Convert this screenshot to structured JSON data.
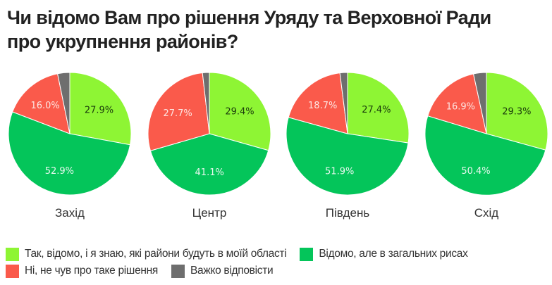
{
  "title": {
    "line1": "Чи відомо Вам про рішення Уряду та Верховної Ради",
    "line2": "про укрупнення районів?"
  },
  "colors": {
    "yes_know": "#8ef534",
    "general": "#04c55a",
    "no": "#fa5a4b",
    "hard": "#6e6e6e"
  },
  "chart_data": {
    "type": "pie",
    "title": "Чи відомо Вам про рішення Уряду та Верховної Ради про укрупнення районів?",
    "legend_position": "bottom",
    "categories": [
      "Так, відомо, і я знаю, які райони будуть в моїй області",
      "Відомо, але в загальних рисах",
      "Ні, не чув про таке рішення",
      "Важко відповісти"
    ],
    "series": [
      {
        "name": "Захід",
        "values": [
          27.9,
          52.9,
          16.0,
          3.2
        ]
      },
      {
        "name": "Центр",
        "values": [
          29.4,
          41.1,
          27.7,
          1.8
        ]
      },
      {
        "name": "Південь",
        "values": [
          27.4,
          51.9,
          18.7,
          2.0
        ]
      },
      {
        "name": "Схід",
        "values": [
          29.3,
          50.4,
          16.9,
          3.4
        ]
      }
    ],
    "data_labels": [
      [
        "27.9%",
        "52.9%",
        "16.0%",
        ""
      ],
      [
        "29.4%",
        "41.1%",
        "27.7%",
        ""
      ],
      [
        "27.4%",
        "51.9%",
        "18.7%",
        ""
      ],
      [
        "29.3%",
        "50.4%",
        "16.9%",
        ""
      ]
    ]
  },
  "pies": [
    {
      "label": "Захід"
    },
    {
      "label": "Центр"
    },
    {
      "label": "Південь"
    },
    {
      "label": "Схід"
    }
  ],
  "legend": {
    "items": [
      {
        "label": "Так, відомо, і я знаю, які райони будуть в моїй області"
      },
      {
        "label": "Відомо, але в загальних рисах"
      },
      {
        "label": "Ні, не чув про таке рішення"
      },
      {
        "label": "Важко відповісти"
      }
    ]
  }
}
